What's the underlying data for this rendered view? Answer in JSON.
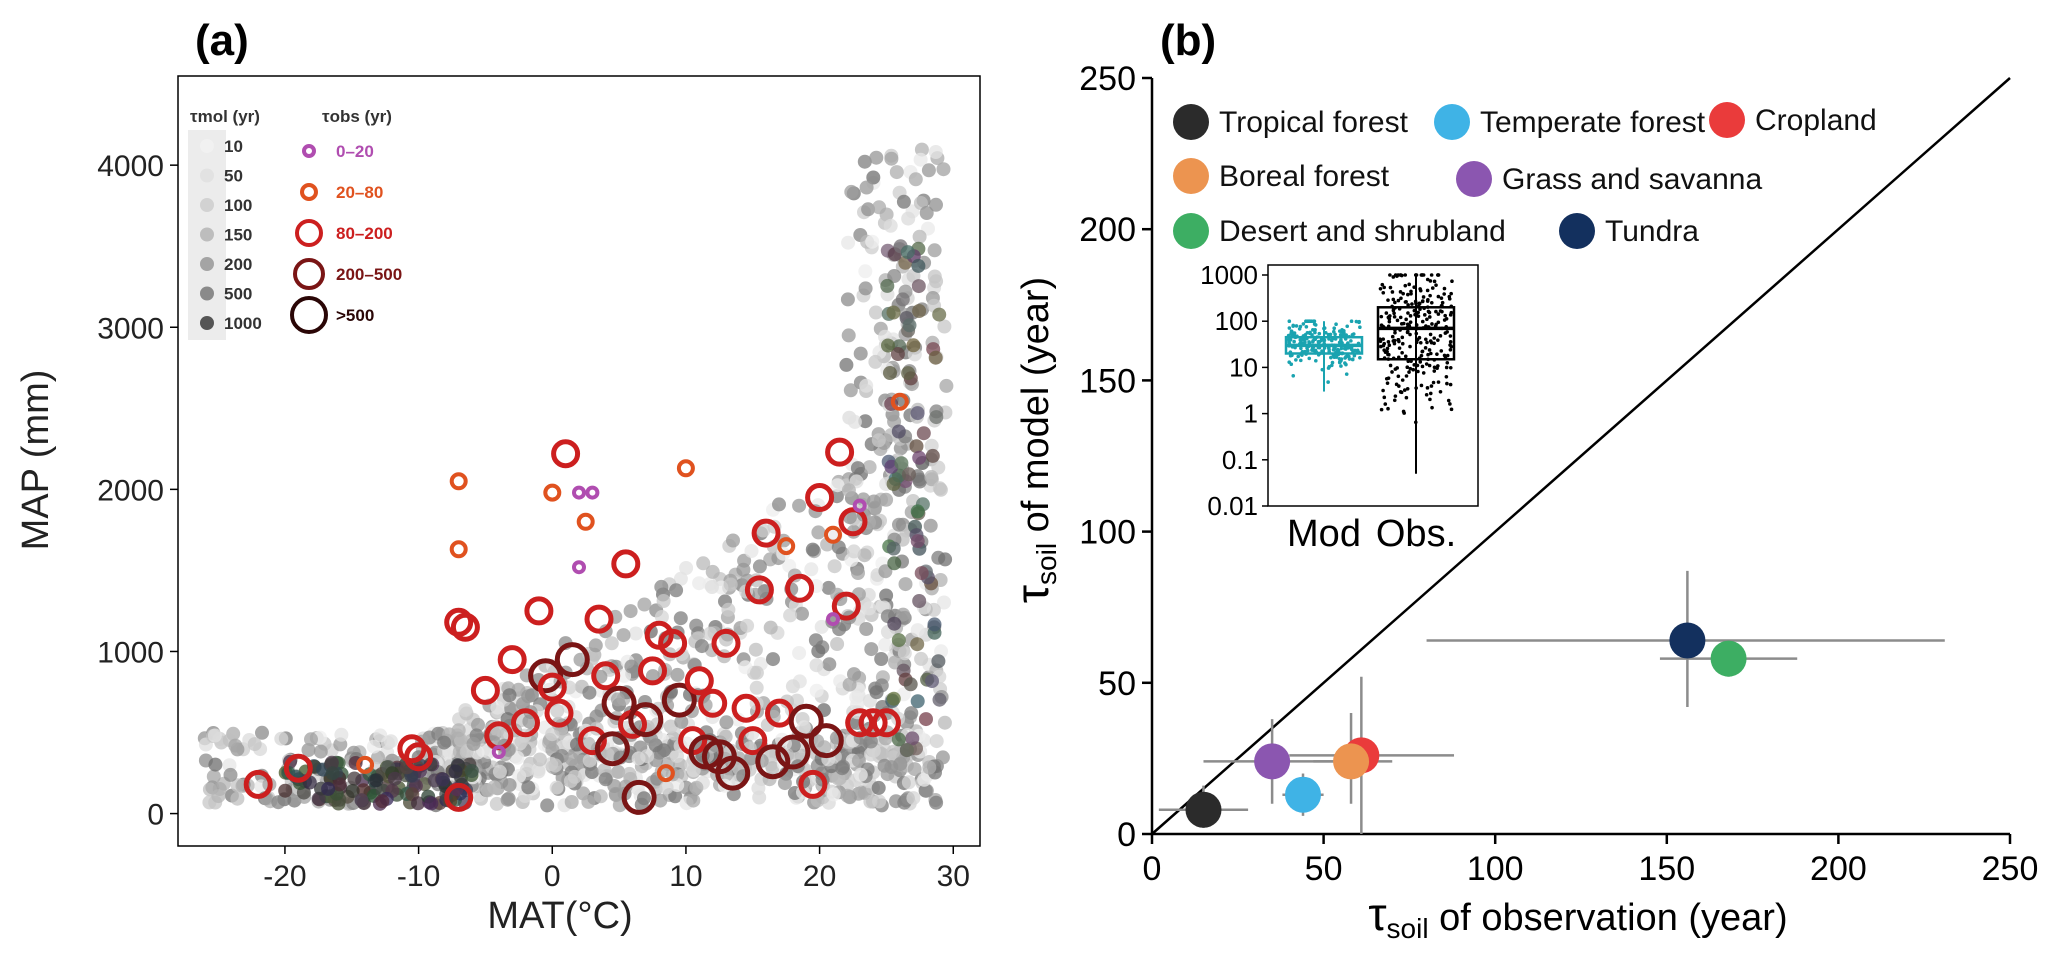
{
  "panel_a": {
    "tag": "(a)",
    "chart_data": {
      "type": "scatter",
      "xlabel": "MAT(°C)",
      "ylabel": "MAP (mm)",
      "xlim": [
        -28,
        32
      ],
      "ylim": [
        -200,
        4550
      ],
      "xticks": [
        "-20",
        "-10",
        "0",
        "10",
        "20",
        "30"
      ],
      "xtick_values": [
        -20,
        -10,
        0,
        10,
        20,
        30
      ],
      "yticks": [
        "0",
        "1000",
        "2000",
        "3000",
        "4000"
      ],
      "ytick_values": [
        0,
        1000,
        2000,
        3000,
        4000
      ],
      "legend_mod": {
        "title": "τmol (yr)",
        "labels": [
          "10",
          "50",
          "100",
          "150",
          "200",
          "500",
          "1000"
        ],
        "colors": [
          "#f1f1f1",
          "#e2e2e2",
          "#d2d2d2",
          "#bdbdbd",
          "#a4a4a4",
          "#8a8a8a",
          "#555555"
        ]
      },
      "legend_obs": {
        "title": "τobs (yr)",
        "labels": [
          "0–20",
          "20–80",
          "80–200",
          "200–500",
          ">500"
        ],
        "colors": [
          "#b04db0",
          "#e0521f",
          "#cc1f1f",
          "#7a1515",
          "#2a0606"
        ]
      },
      "obs_points": [
        {
          "x": -22,
          "y": 180,
          "c": 2
        },
        {
          "x": -19,
          "y": 280,
          "c": 2
        },
        {
          "x": -14,
          "y": 300,
          "c": 1
        },
        {
          "x": -10.5,
          "y": 400,
          "c": 2
        },
        {
          "x": -10,
          "y": 350,
          "c": 2
        },
        {
          "x": -7,
          "y": 100,
          "c": 2
        },
        {
          "x": -7,
          "y": 1180,
          "c": 2
        },
        {
          "x": -7,
          "y": 1630,
          "c": 1
        },
        {
          "x": -7,
          "y": 2050,
          "c": 1
        },
        {
          "x": -6.5,
          "y": 1150,
          "c": 2
        },
        {
          "x": -5,
          "y": 760,
          "c": 2
        },
        {
          "x": -4,
          "y": 480,
          "c": 2
        },
        {
          "x": -3,
          "y": 950,
          "c": 2
        },
        {
          "x": -2,
          "y": 560,
          "c": 2
        },
        {
          "x": -1,
          "y": 1250,
          "c": 2
        },
        {
          "x": -0.5,
          "y": 850,
          "c": 3
        },
        {
          "x": 0,
          "y": 780,
          "c": 2
        },
        {
          "x": 0.5,
          "y": 620,
          "c": 2
        },
        {
          "x": 1,
          "y": 2220,
          "c": 2
        },
        {
          "x": 1.5,
          "y": 950,
          "c": 3
        },
        {
          "x": 2,
          "y": 1980,
          "c": 0
        },
        {
          "x": 2.5,
          "y": 1800,
          "c": 1
        },
        {
          "x": 3,
          "y": 450,
          "c": 2
        },
        {
          "x": 3.5,
          "y": 1200,
          "c": 2
        },
        {
          "x": 4,
          "y": 850,
          "c": 2
        },
        {
          "x": 4.5,
          "y": 400,
          "c": 3
        },
        {
          "x": 5,
          "y": 680,
          "c": 3
        },
        {
          "x": 5.5,
          "y": 1540,
          "c": 2
        },
        {
          "x": 6,
          "y": 550,
          "c": 2
        },
        {
          "x": 6.5,
          "y": 100,
          "c": 3
        },
        {
          "x": 7,
          "y": 580,
          "c": 3
        },
        {
          "x": 7.5,
          "y": 880,
          "c": 2
        },
        {
          "x": 8,
          "y": 1100,
          "c": 2
        },
        {
          "x": 8.5,
          "y": 250,
          "c": 1
        },
        {
          "x": 9,
          "y": 1050,
          "c": 2
        },
        {
          "x": 9.5,
          "y": 700,
          "c": 3
        },
        {
          "x": 10,
          "y": 2130,
          "c": 1
        },
        {
          "x": 10.5,
          "y": 450,
          "c": 2
        },
        {
          "x": 11,
          "y": 820,
          "c": 2
        },
        {
          "x": 11.5,
          "y": 380,
          "c": 3
        },
        {
          "x": 12,
          "y": 680,
          "c": 2
        },
        {
          "x": 12.5,
          "y": 350,
          "c": 3
        },
        {
          "x": 13,
          "y": 1050,
          "c": 2
        },
        {
          "x": 13.5,
          "y": 250,
          "c": 3
        },
        {
          "x": 14.5,
          "y": 650,
          "c": 2
        },
        {
          "x": 15,
          "y": 450,
          "c": 2
        },
        {
          "x": 15.5,
          "y": 1380,
          "c": 2
        },
        {
          "x": 16,
          "y": 1730,
          "c": 2
        },
        {
          "x": 16.5,
          "y": 320,
          "c": 3
        },
        {
          "x": 17,
          "y": 620,
          "c": 2
        },
        {
          "x": 17.5,
          "y": 1650,
          "c": 1
        },
        {
          "x": 18,
          "y": 380,
          "c": 3
        },
        {
          "x": 18.5,
          "y": 1390,
          "c": 2
        },
        {
          "x": 19,
          "y": 570,
          "c": 3
        },
        {
          "x": 19.5,
          "y": 180,
          "c": 2
        },
        {
          "x": 20,
          "y": 1950,
          "c": 2
        },
        {
          "x": 20.5,
          "y": 450,
          "c": 3
        },
        {
          "x": 21,
          "y": 1720,
          "c": 1
        },
        {
          "x": 21.5,
          "y": 2230,
          "c": 2
        },
        {
          "x": 22,
          "y": 1280,
          "c": 2
        },
        {
          "x": 22.5,
          "y": 1800,
          "c": 2
        },
        {
          "x": 23,
          "y": 560,
          "c": 2
        },
        {
          "x": 24,
          "y": 560,
          "c": 2
        },
        {
          "x": 25,
          "y": 560,
          "c": 2
        },
        {
          "x": 26,
          "y": 2540,
          "c": 1
        },
        {
          "x": 2,
          "y": 1520,
          "c": 0
        },
        {
          "x": -4,
          "y": 380,
          "c": 0
        },
        {
          "x": 23,
          "y": 1900,
          "c": 0
        },
        {
          "x": 21,
          "y": 1200,
          "c": 0
        },
        {
          "x": 3,
          "y": 1980,
          "c": 0
        },
        {
          "x": 0,
          "y": 1980,
          "c": 1
        }
      ]
    }
  },
  "panel_b": {
    "tag": "(b)",
    "chart_data": {
      "type": "scatter",
      "xlabel": "τsoil of observation (year)",
      "ylabel": "τsoil of model (year)",
      "xlabel_parts": [
        "τ",
        "soil",
        " of observation (year)"
      ],
      "ylabel_parts": [
        "τ",
        "soil",
        "  of model  (year)"
      ],
      "xlim": [
        0,
        250
      ],
      "ylim": [
        0,
        250
      ],
      "xticks": [
        "0",
        "50",
        "100",
        "150",
        "200",
        "250"
      ],
      "yticks": [
        "0",
        "50",
        "100",
        "150",
        "200",
        "250"
      ],
      "tick_values": [
        0,
        50,
        100,
        150,
        200,
        250
      ],
      "reference_line": "1:1",
      "series": [
        {
          "name": "Tropical forest",
          "color": "#2b2b2b",
          "x": 15,
          "y": 8,
          "xerr": [
            2,
            28
          ],
          "yerr": [
            2,
            16
          ]
        },
        {
          "name": "Temperate forest",
          "color": "#3fb3e6",
          "x": 44,
          "y": 13,
          "xerr": [
            38,
            50
          ],
          "yerr": [
            6,
            20
          ]
        },
        {
          "name": "Cropland",
          "color": "#ea3b3b",
          "x": 61,
          "y": 26,
          "xerr": [
            40,
            88
          ],
          "yerr": [
            0,
            52
          ]
        },
        {
          "name": "Boreal forest",
          "color": "#ec9450",
          "x": 58,
          "y": 24,
          "xerr": [
            47,
            70
          ],
          "yerr": [
            10,
            40
          ]
        },
        {
          "name": "Grass and savanna",
          "color": "#8b56b0",
          "x": 35,
          "y": 24,
          "xerr": [
            15,
            60
          ],
          "yerr": [
            10,
            38
          ]
        },
        {
          "name": "Desert and shrubland",
          "color": "#3dae63",
          "x": 168,
          "y": 58,
          "xerr": [
            148,
            188
          ],
          "yerr": [
            52,
            64
          ]
        },
        {
          "name": "Tundra",
          "color": "#13305e",
          "x": 156,
          "y": 64,
          "xerr": [
            80,
            231
          ],
          "yerr": [
            42,
            87
          ]
        }
      ],
      "inset": {
        "type": "box",
        "scale": "log",
        "yticks": [
          "0.01",
          "0.1",
          "1",
          "10",
          "100",
          "1000"
        ],
        "ytick_values": [
          0.01,
          0.1,
          1,
          10,
          100,
          1000
        ],
        "categories": [
          "Mod",
          "Obs."
        ],
        "colors": [
          "#1aa3b0",
          "#000000"
        ],
        "boxes": [
          {
            "name": "Mod",
            "whisker_low": 3,
            "q1": 20,
            "median": 30,
            "q3": 45,
            "whisker_high": 100
          },
          {
            "name": "Obs.",
            "whisker_low": 0.05,
            "q1": 15,
            "median": 70,
            "q3": 200,
            "whisker_high": 1000
          }
        ]
      }
    }
  }
}
